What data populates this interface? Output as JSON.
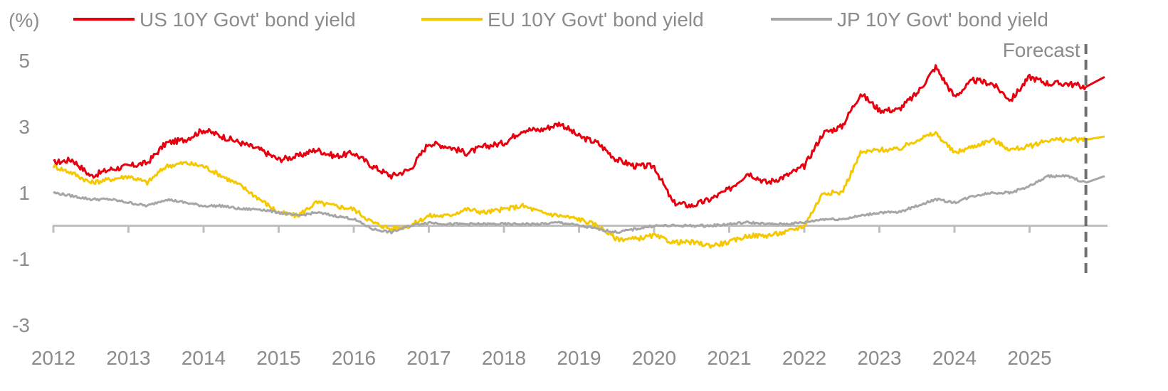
{
  "chart_data": {
    "type": "line",
    "title": "",
    "ylabel": "(%)",
    "xlabel": "",
    "ylim": [
      -3,
      5
    ],
    "yticks": [
      -3,
      -1,
      1,
      3,
      5
    ],
    "xlim": [
      2012.0,
      2026.0
    ],
    "xticks": [
      "2012",
      "2013",
      "2014",
      "2015",
      "2016",
      "2017",
      "2018",
      "2019",
      "2020",
      "2021",
      "2022",
      "2023",
      "2024",
      "2025"
    ],
    "forecast_label": "Forecast",
    "forecast_start": 2025.75,
    "legend_position": "top",
    "grid": false,
    "series": [
      {
        "name": "US 10Y Govt' bond yield",
        "color": "#e8000f",
        "x": [
          2012.0,
          2012.25,
          2012.5,
          2012.75,
          2013.0,
          2013.25,
          2013.5,
          2013.75,
          2014.0,
          2014.25,
          2014.5,
          2014.75,
          2015.0,
          2015.25,
          2015.5,
          2015.75,
          2016.0,
          2016.25,
          2016.5,
          2016.75,
          2017.0,
          2017.25,
          2017.5,
          2017.75,
          2018.0,
          2018.25,
          2018.5,
          2018.75,
          2019.0,
          2019.25,
          2019.5,
          2019.75,
          2020.0,
          2020.25,
          2020.5,
          2020.75,
          2021.0,
          2021.25,
          2021.5,
          2021.75,
          2022.0,
          2022.25,
          2022.5,
          2022.75,
          2023.0,
          2023.25,
          2023.5,
          2023.75,
          2024.0,
          2024.25,
          2024.5,
          2024.75,
          2025.0,
          2025.25,
          2025.5,
          2025.75,
          2026.0
        ],
        "y": [
          1.9,
          2.0,
          1.5,
          1.7,
          1.8,
          1.9,
          2.5,
          2.6,
          2.9,
          2.7,
          2.5,
          2.3,
          2.0,
          2.1,
          2.3,
          2.1,
          2.2,
          1.8,
          1.5,
          1.7,
          2.5,
          2.4,
          2.2,
          2.4,
          2.5,
          2.9,
          2.9,
          3.1,
          2.7,
          2.5,
          2.0,
          1.8,
          1.8,
          0.7,
          0.6,
          0.8,
          1.1,
          1.6,
          1.3,
          1.5,
          1.8,
          2.8,
          3.0,
          4.0,
          3.5,
          3.5,
          4.0,
          4.8,
          3.9,
          4.4,
          4.3,
          3.8,
          4.5,
          4.3,
          4.3,
          4.2,
          4.5
        ]
      },
      {
        "name": "EU 10Y Govt' bond yield",
        "color": "#f5c800",
        "x": [
          2012.0,
          2012.25,
          2012.5,
          2012.75,
          2013.0,
          2013.25,
          2013.5,
          2013.75,
          2014.0,
          2014.25,
          2014.5,
          2014.75,
          2015.0,
          2015.25,
          2015.5,
          2015.75,
          2016.0,
          2016.25,
          2016.5,
          2016.75,
          2017.0,
          2017.25,
          2017.5,
          2017.75,
          2018.0,
          2018.25,
          2018.5,
          2018.75,
          2019.0,
          2019.25,
          2019.5,
          2019.75,
          2020.0,
          2020.25,
          2020.5,
          2020.75,
          2021.0,
          2021.25,
          2021.5,
          2021.75,
          2022.0,
          2022.25,
          2022.5,
          2022.75,
          2023.0,
          2023.25,
          2023.5,
          2023.75,
          2024.0,
          2024.25,
          2024.5,
          2024.75,
          2025.0,
          2025.25,
          2025.5,
          2025.75,
          2026.0
        ],
        "y": [
          1.8,
          1.6,
          1.3,
          1.4,
          1.5,
          1.3,
          1.8,
          1.9,
          1.8,
          1.5,
          1.2,
          0.8,
          0.4,
          0.3,
          0.7,
          0.6,
          0.5,
          0.1,
          -0.1,
          0.0,
          0.3,
          0.3,
          0.5,
          0.4,
          0.5,
          0.6,
          0.4,
          0.3,
          0.2,
          0.0,
          -0.4,
          -0.4,
          -0.3,
          -0.5,
          -0.5,
          -0.6,
          -0.5,
          -0.3,
          -0.3,
          -0.2,
          0.0,
          1.0,
          1.0,
          2.2,
          2.3,
          2.3,
          2.6,
          2.8,
          2.2,
          2.4,
          2.6,
          2.3,
          2.4,
          2.6,
          2.6,
          2.6,
          2.7
        ]
      },
      {
        "name": "JP 10Y Govt' bond yield",
        "color": "#a6a6a6",
        "x": [
          2012.0,
          2012.25,
          2012.5,
          2012.75,
          2013.0,
          2013.25,
          2013.5,
          2013.75,
          2014.0,
          2014.25,
          2014.5,
          2014.75,
          2015.0,
          2015.25,
          2015.5,
          2015.75,
          2016.0,
          2016.25,
          2016.5,
          2016.75,
          2017.0,
          2017.25,
          2017.5,
          2017.75,
          2018.0,
          2018.25,
          2018.5,
          2018.75,
          2019.0,
          2019.25,
          2019.5,
          2019.75,
          2020.0,
          2020.25,
          2020.5,
          2020.75,
          2021.0,
          2021.25,
          2021.5,
          2021.75,
          2022.0,
          2022.25,
          2022.5,
          2022.75,
          2023.0,
          2023.25,
          2023.5,
          2023.75,
          2024.0,
          2024.25,
          2024.5,
          2024.75,
          2025.0,
          2025.25,
          2025.5,
          2025.75,
          2026.0
        ],
        "y": [
          1.0,
          0.9,
          0.8,
          0.8,
          0.7,
          0.6,
          0.8,
          0.7,
          0.6,
          0.6,
          0.5,
          0.5,
          0.4,
          0.3,
          0.4,
          0.3,
          0.2,
          -0.1,
          -0.2,
          0.0,
          0.1,
          0.05,
          0.05,
          0.05,
          0.05,
          0.05,
          0.05,
          0.1,
          0.0,
          -0.1,
          -0.2,
          -0.1,
          0.0,
          0.0,
          0.0,
          0.0,
          0.05,
          0.1,
          0.05,
          0.05,
          0.1,
          0.2,
          0.2,
          0.3,
          0.4,
          0.4,
          0.6,
          0.8,
          0.7,
          0.9,
          1.0,
          1.0,
          1.2,
          1.5,
          1.5,
          1.3,
          1.5
        ]
      }
    ]
  }
}
